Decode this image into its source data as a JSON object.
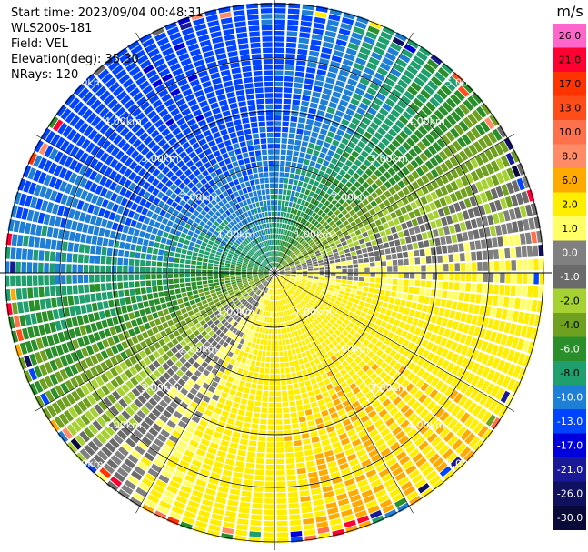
{
  "header": {
    "start_time": "Start time: 2023/09/04 00:48:31",
    "instrument": "WLS200s-181",
    "field": "Field: VEL",
    "elevation": "Elevation(deg): 35.30",
    "nrays": "NRays: 120"
  },
  "chart_data": {
    "type": "heatmap",
    "projection": "polar-ppi",
    "field": "VEL",
    "nrays": 120,
    "range_rings_km": [
      1.0,
      2.0,
      3.0,
      4.0,
      5.0
    ],
    "ring_labels": [
      "1.00km",
      "2.00km",
      "3.00km",
      "4.00km",
      "5.00km"
    ],
    "max_range_km": 5.0,
    "colorbar": {
      "unit": "m/s",
      "ticks": [
        "26.0",
        "21.0",
        "17.0",
        "13.0",
        "10.0",
        "8.0",
        "6.0",
        "2.0",
        "1.0",
        "0.0",
        "-1.0",
        "-2.0",
        "-4.0",
        "-6.0",
        "-8.0",
        "-10.0",
        "-13.0",
        "-17.0",
        "-21.0",
        "-26.0",
        "-30.0"
      ],
      "colors": [
        "#ff66cc",
        "#ff0033",
        "#ff3300",
        "#ff4d1a",
        "#ff704d",
        "#ff8c66",
        "#ffaa00",
        "#ffee00",
        "#ffff66",
        "#808080",
        "#6b6b6b",
        "#a6d132",
        "#6fa020",
        "#2a8f2a",
        "#1f9e6e",
        "#1e7fd6",
        "#0044ff",
        "#0000dd",
        "#1a1a99",
        "#101060",
        "#0a0a3a"
      ]
    }
  }
}
